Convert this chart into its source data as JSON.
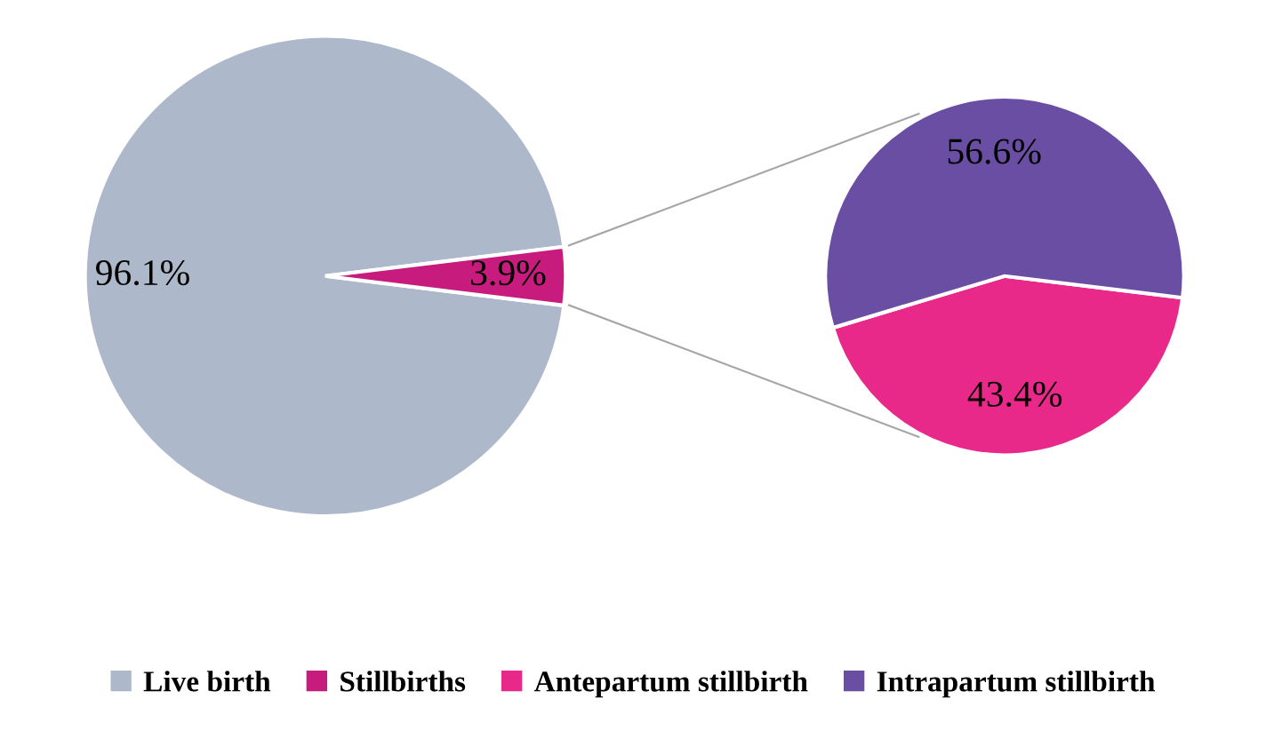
{
  "chart_data": [
    {
      "type": "pie",
      "categories": [
        "Live birth",
        "Stillbirths"
      ],
      "values": [
        96.1,
        3.9
      ],
      "colors": [
        "#adb9ca",
        "#c71b7d"
      ],
      "value_labels": [
        "96.1%",
        "3.9%"
      ],
      "legend": "bottom"
    },
    {
      "type": "pie",
      "categories": [
        "Antepartum stillbirth",
        "Intrapartum stillbirth"
      ],
      "values": [
        43.4,
        56.6
      ],
      "colors": [
        "#e8298a",
        "#6a4ea3"
      ],
      "value_labels": [
        "43.4%",
        "56.6%"
      ],
      "legend": "bottom"
    }
  ]
}
